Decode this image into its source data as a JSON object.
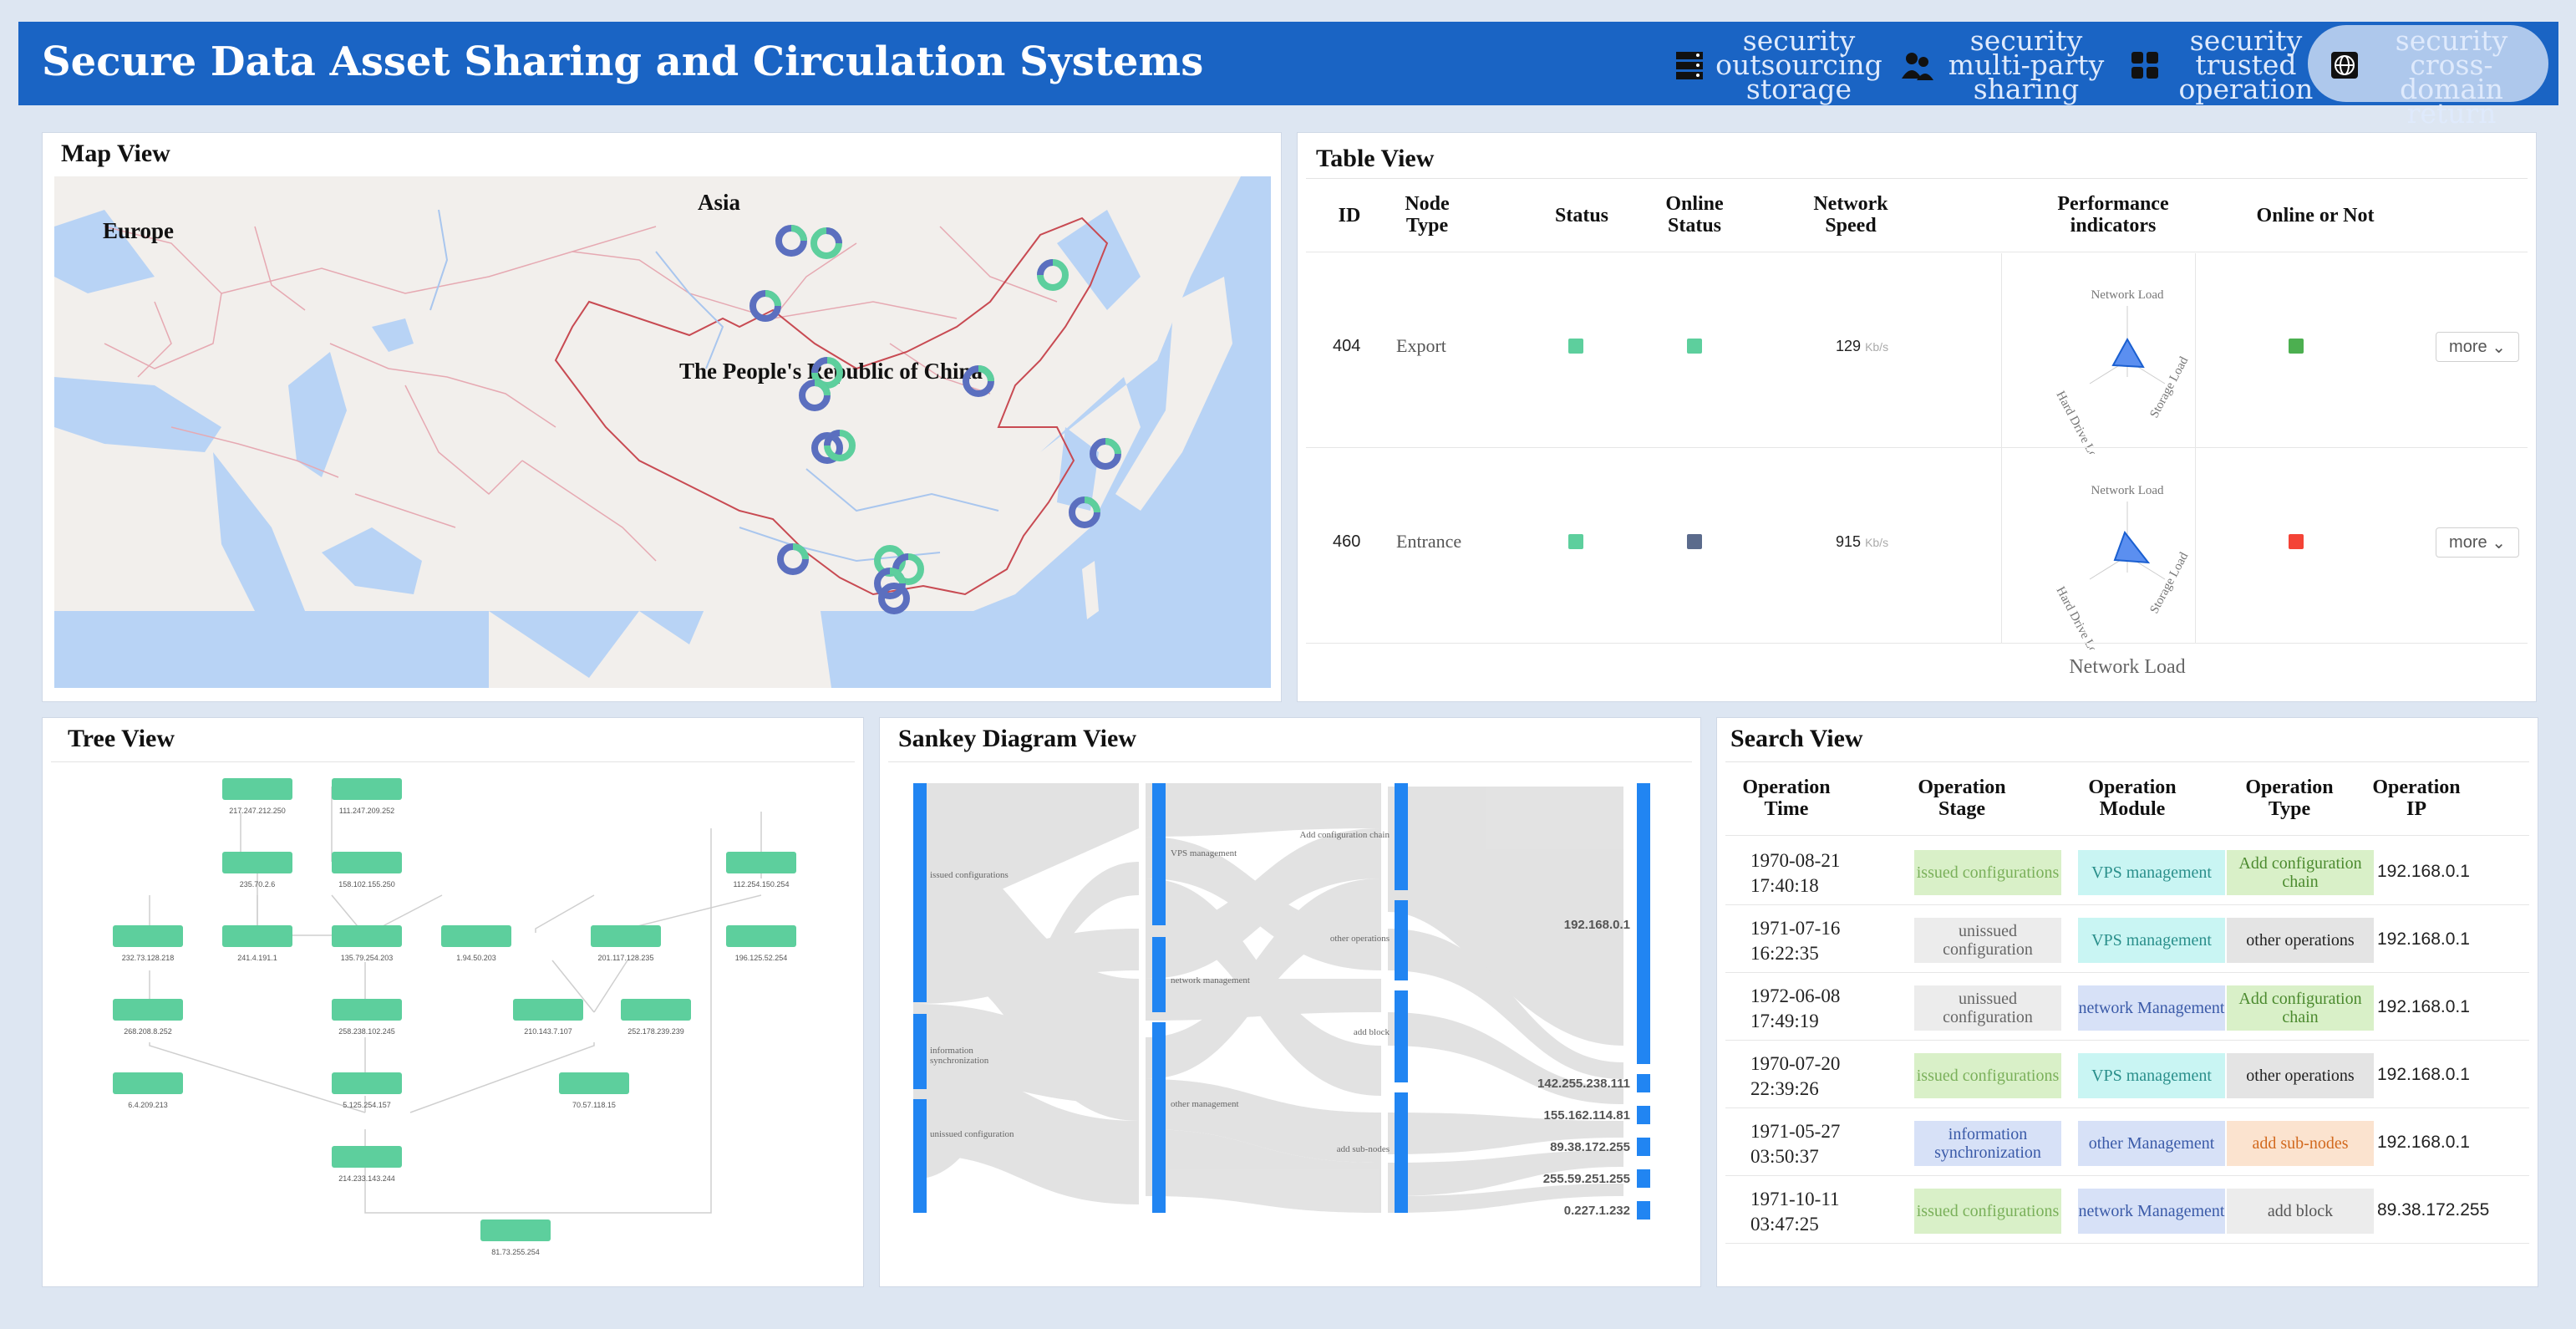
{
  "app": {
    "title": "Secure Data Asset Sharing and Circulation Systems"
  },
  "nav": [
    {
      "label": "security outsourcing storage",
      "icon": "server-icon",
      "active": false
    },
    {
      "label": "security multi-party sharing",
      "icon": "people-icon",
      "active": false
    },
    {
      "label": "security trusted operation",
      "icon": "grid-icon",
      "active": false
    },
    {
      "label": "security cross-domain return",
      "icon": "globe-icon",
      "active": true
    }
  ],
  "map_view": {
    "title": "Map View",
    "labels": {
      "asia": "Asia",
      "europe": "Europe",
      "china": "The People's Republic of China"
    }
  },
  "table_view": {
    "title": "Table View",
    "headers": [
      "ID",
      "Node Type",
      "Status",
      "Online Status",
      "Network Speed",
      "Performance indicators",
      "Online or Not"
    ],
    "radar_axes": [
      "Network Load",
      "Hard Drive Load",
      "Storage Load"
    ],
    "more_label": "more",
    "speed_unit": "Kb/s",
    "partial_label": "Network Load",
    "rows": [
      {
        "id": "404",
        "type": "Export",
        "speed": "129",
        "status_color": "#5dcf9d",
        "online_color": "#5dcf9d",
        "online_or_not_color": "#4caf50"
      },
      {
        "id": "460",
        "type": "Entrance",
        "speed": "915",
        "status_color": "#5dcf9d",
        "online_color": "#5b6b8c",
        "online_or_not_color": "#f44336"
      }
    ]
  },
  "tree_view": {
    "title": "Tree View",
    "nodes": [
      "217.247.212.250",
      "111.247.209.252",
      "235.70.2.6",
      "158.102.155.250",
      "112.254.150.254",
      "232.73.128.218",
      "241.4.191.1",
      "135.79.254.203",
      "1.94.50.203",
      "201.117.128.235",
      "196.125.52.254",
      "268.208.8.252",
      "258.238.102.245",
      "210.143.7.107",
      "252.178.239.239",
      "6.4.209.213",
      "5.125.254.157",
      "70.57.118.15",
      "214.233.143.244",
      "81.73.255.254"
    ]
  },
  "sankey_view": {
    "title": "Sankey Diagram View",
    "stages": [
      "issued configurations",
      "information synchronization",
      "unissued configuration"
    ],
    "modules": [
      "VPS management",
      "network management",
      "other management"
    ],
    "types": [
      "Add configuration chain",
      "other operations",
      "add block",
      "add sub-nodes"
    ],
    "ips": [
      "192.168.0.1",
      "142.255.238.111",
      "155.162.114.81",
      "89.38.172.255",
      "255.59.251.255",
      "0.227.1.232"
    ]
  },
  "search_view": {
    "title": "Search View",
    "headers": [
      "Operation Time",
      "Operation Stage",
      "Operation Module",
      "Operation Type",
      "Operation IP"
    ],
    "rows": [
      {
        "date": "1970-08-21",
        "time": "17:40:18",
        "stage": "issued configurations",
        "module": "VPS management",
        "type": "Add configuration chain",
        "ip": "192.168.0.1"
      },
      {
        "date": "1971-07-16",
        "time": "16:22:35",
        "stage": "unissued configuration",
        "module": "VPS management",
        "type": "other operations",
        "ip": "192.168.0.1"
      },
      {
        "date": "1972-06-08",
        "time": "17:49:19",
        "stage": "unissued configuration",
        "module": "network Management",
        "type": "Add configuration chain",
        "ip": "192.168.0.1"
      },
      {
        "date": "1970-07-20",
        "time": "22:39:26",
        "stage": "issued configurations",
        "module": "VPS management",
        "type": "other operations",
        "ip": "192.168.0.1"
      },
      {
        "date": "1971-05-27",
        "time": "03:50:37",
        "stage": "information synchronization",
        "module": "other Management",
        "type": "add sub-nodes",
        "ip": "192.168.0.1"
      },
      {
        "date": "1971-10-11",
        "time": "03:47:25",
        "stage": "issued configurations",
        "module": "network Management",
        "type": "add block",
        "ip": "89.38.172.255"
      }
    ]
  }
}
